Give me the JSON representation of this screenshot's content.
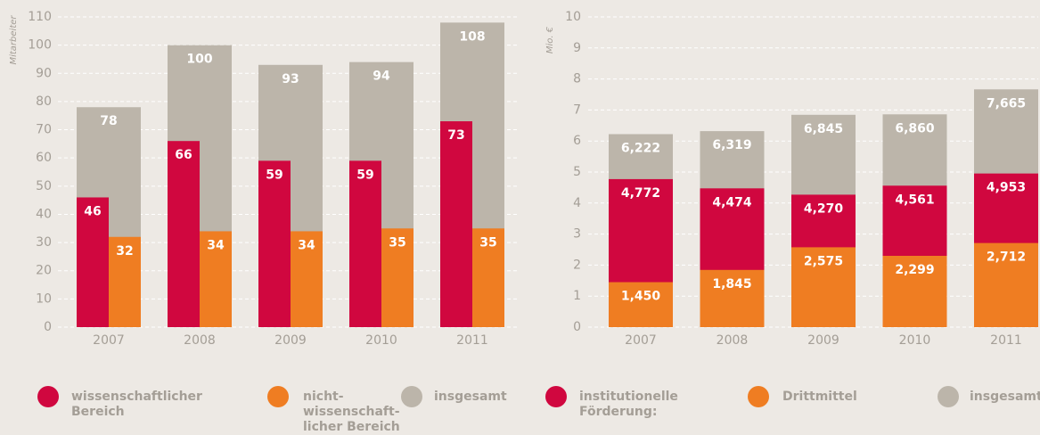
{
  "chart_data": [
    {
      "type": "bar",
      "y_label": "Mitarbeiter",
      "categories": [
        "2007",
        "2008",
        "2009",
        "2010",
        "2011"
      ],
      "series": [
        {
          "name": "wissenschaftlicher Bereich",
          "color": "#d0073f",
          "values": [
            46,
            66,
            59,
            59,
            73
          ]
        },
        {
          "name": "nicht-wissenschaft-licher Bereich",
          "color": "#ef7d22",
          "values": [
            32,
            34,
            34,
            35,
            35
          ]
        },
        {
          "name": "insgesamt",
          "color": "#bcb5aa",
          "values": [
            78,
            100,
            93,
            94,
            108
          ]
        }
      ],
      "ylim": [
        0,
        110
      ],
      "yticks": [
        0,
        10,
        20,
        30,
        40,
        50,
        60,
        70,
        80,
        90,
        100,
        110
      ],
      "grid": true
    },
    {
      "type": "bar",
      "y_label": "Mio. €",
      "categories": [
        "2007",
        "2008",
        "2009",
        "2010",
        "2011"
      ],
      "series": [
        {
          "name": "institutionelle Förderung:",
          "color": "#d0073f",
          "values": [
            4.772,
            4.474,
            4.27,
            4.561,
            4.953
          ],
          "value_labels": [
            "4,772",
            "4,474",
            "4,270",
            "4,561",
            "4,953"
          ]
        },
        {
          "name": "Drittmittel",
          "color": "#ef7d22",
          "values": [
            1.45,
            1.845,
            2.575,
            2.299,
            2.712
          ],
          "value_labels": [
            "1,450",
            "1,845",
            "2,575",
            "2,299",
            "2,712"
          ]
        },
        {
          "name": "insgesamt",
          "color": "#bcb5aa",
          "values": [
            6.222,
            6.319,
            6.845,
            6.86,
            7.665
          ],
          "value_labels": [
            "6,222",
            "6,319",
            "6,845",
            "6,860",
            "7,665"
          ]
        }
      ],
      "ylim": [
        0,
        10
      ],
      "yticks": [
        0,
        1,
        2,
        3,
        4,
        5,
        6,
        7,
        8,
        9,
        10
      ],
      "grid": true
    }
  ]
}
